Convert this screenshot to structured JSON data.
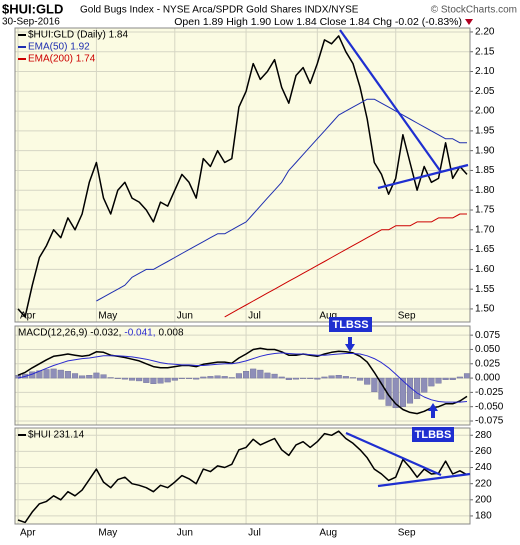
{
  "chart_data": [
    {
      "type": "line",
      "title": "$HUI:GLD",
      "subtitle": "Gold Bugs Index - NYSE Arca/SPDR Gold Shares INDX/NYSE",
      "credit": "© StockCharts.com",
      "date": "30-Sep-2016",
      "quote": "Open 1.89 High 1.90 Low 1.84 Close 1.84 Chg -0.02 (-0.83%)",
      "categories": [
        "Apr",
        null,
        null,
        null,
        null,
        null,
        null,
        null,
        null,
        null,
        null,
        "May",
        null,
        null,
        null,
        null,
        null,
        null,
        null,
        null,
        null,
        null,
        "Jun",
        null,
        null,
        null,
        null,
        null,
        null,
        null,
        null,
        null,
        "Jul",
        null,
        null,
        null,
        null,
        null,
        null,
        null,
        null,
        null,
        "Aug",
        null,
        null,
        null,
        null,
        null,
        null,
        null,
        null,
        null,
        null,
        "Sep",
        null,
        null,
        null,
        null,
        null,
        null,
        null,
        null,
        null,
        null
      ],
      "ylim": [
        1.467,
        2.21
      ],
      "yticks": [
        {
          "value": 1.5,
          "label": "1.50"
        },
        {
          "value": 1.55,
          "label": "1.55"
        },
        {
          "value": 1.6,
          "label": "1.60"
        },
        {
          "value": 1.65,
          "label": "1.65"
        },
        {
          "value": 1.7,
          "label": "1.70"
        },
        {
          "value": 1.75,
          "label": "1.75"
        },
        {
          "value": 1.8,
          "label": "1.80"
        },
        {
          "value": 1.85,
          "label": "1.85"
        },
        {
          "value": 1.9,
          "label": "1.90"
        },
        {
          "value": 1.95,
          "label": "1.95"
        },
        {
          "value": 2.0,
          "label": "2.00"
        },
        {
          "value": 2.05,
          "label": "2.05"
        },
        {
          "value": 2.1,
          "label": "2.10"
        },
        {
          "value": 2.15,
          "label": "2.15"
        },
        {
          "value": 2.2,
          "label": "2.20"
        }
      ],
      "grid": true,
      "series": [
        {
          "name": "$HUI:GLD (Daily) 1.84",
          "color": "#000000",
          "type": "line",
          "values": [
            1.5,
            1.48,
            1.56,
            1.63,
            1.66,
            1.7,
            1.68,
            1.73,
            1.7,
            1.74,
            1.82,
            1.87,
            1.78,
            1.74,
            1.8,
            1.82,
            1.78,
            1.77,
            1.75,
            1.72,
            1.77,
            1.76,
            1.8,
            1.84,
            1.82,
            1.78,
            1.88,
            1.86,
            1.9,
            1.87,
            1.88,
            2.01,
            2.05,
            2.12,
            2.08,
            2.1,
            2.13,
            2.06,
            2.02,
            2.09,
            2.11,
            2.07,
            2.12,
            2.18,
            2.17,
            2.19,
            2.15,
            2.12,
            2.06,
            1.98,
            1.87,
            1.84,
            1.79,
            1.83,
            1.94,
            1.87,
            1.8,
            1.86,
            1.82,
            1.83,
            1.92,
            1.83,
            1.86,
            1.84
          ]
        },
        {
          "name": "EMA(50) 1.92",
          "color": "#1f2fb0",
          "type": "line",
          "values": [
            null,
            null,
            null,
            null,
            null,
            null,
            null,
            null,
            null,
            null,
            null,
            1.52,
            1.53,
            1.54,
            1.55,
            1.56,
            1.58,
            1.59,
            1.6,
            1.6,
            1.61,
            1.62,
            1.63,
            1.64,
            1.65,
            1.66,
            1.67,
            1.68,
            1.69,
            1.69,
            1.7,
            1.71,
            1.72,
            1.74,
            1.76,
            1.78,
            1.8,
            1.82,
            1.85,
            1.87,
            1.89,
            1.91,
            1.93,
            1.95,
            1.97,
            1.99,
            2.0,
            2.01,
            2.02,
            2.03,
            2.03,
            2.02,
            2.01,
            2.0,
            1.99,
            1.98,
            1.97,
            1.96,
            1.95,
            1.94,
            1.93,
            1.93,
            1.92,
            1.92
          ]
        },
        {
          "name": "EMA(200) 1.74",
          "color": "#cc0000",
          "type": "line",
          "values": [
            null,
            null,
            null,
            null,
            null,
            null,
            null,
            null,
            null,
            null,
            null,
            null,
            null,
            null,
            null,
            null,
            null,
            null,
            null,
            null,
            null,
            null,
            null,
            null,
            null,
            null,
            null,
            null,
            null,
            1.48,
            1.49,
            1.5,
            1.51,
            1.52,
            1.53,
            1.54,
            1.55,
            1.56,
            1.57,
            1.58,
            1.59,
            1.6,
            1.61,
            1.62,
            1.63,
            1.64,
            1.65,
            1.66,
            1.67,
            1.68,
            1.69,
            1.7,
            1.7,
            1.71,
            1.71,
            1.71,
            1.72,
            1.72,
            1.72,
            1.73,
            1.73,
            1.73,
            1.74,
            1.74
          ]
        }
      ]
    },
    {
      "type": "line",
      "annotation": "TLBSS",
      "ylim": [
        -0.082,
        0.091
      ],
      "yticks": [
        {
          "value": 0.075,
          "label": "0.075"
        },
        {
          "value": 0.05,
          "label": "0.050"
        },
        {
          "value": 0.025,
          "label": "0.025"
        },
        {
          "value": 0,
          "label": "0.000"
        },
        {
          "value": -0.025,
          "label": "-0.025"
        },
        {
          "value": -0.05,
          "label": "-0.050"
        },
        {
          "value": -0.075,
          "label": "-0.075"
        }
      ],
      "grid": true,
      "series": [
        {
          "name": "MACD(12,26,9) -0.032,",
          "color": "#000000",
          "type": "line",
          "values": [
            0.005,
            0.01,
            0.018,
            0.025,
            0.032,
            0.038,
            0.04,
            0.042,
            0.04,
            0.038,
            0.04,
            0.046,
            0.045,
            0.04,
            0.038,
            0.036,
            0.033,
            0.03,
            0.025,
            0.02,
            0.018,
            0.018,
            0.02,
            0.022,
            0.022,
            0.02,
            0.024,
            0.026,
            0.028,
            0.028,
            0.026,
            0.035,
            0.042,
            0.05,
            0.052,
            0.05,
            0.05,
            0.046,
            0.04,
            0.04,
            0.042,
            0.04,
            0.038,
            0.042,
            0.045,
            0.047,
            0.046,
            0.044,
            0.038,
            0.028,
            0.01,
            -0.01,
            -0.03,
            -0.045,
            -0.055,
            -0.06,
            -0.062,
            -0.058,
            -0.052,
            -0.05,
            -0.045,
            -0.045,
            -0.04,
            -0.032
          ]
        },
        {
          "name": "-0.041,",
          "color": "#2b2bd0",
          "type": "line",
          "values": [
            0.0,
            0.003,
            0.007,
            0.012,
            0.017,
            0.022,
            0.026,
            0.03,
            0.032,
            0.034,
            0.035,
            0.037,
            0.039,
            0.039,
            0.039,
            0.038,
            0.037,
            0.035,
            0.033,
            0.03,
            0.027,
            0.025,
            0.024,
            0.023,
            0.023,
            0.022,
            0.022,
            0.023,
            0.024,
            0.025,
            0.025,
            0.027,
            0.03,
            0.034,
            0.038,
            0.041,
            0.043,
            0.044,
            0.043,
            0.042,
            0.042,
            0.041,
            0.04,
            0.04,
            0.041,
            0.042,
            0.043,
            0.043,
            0.042,
            0.039,
            0.034,
            0.027,
            0.018,
            0.007,
            -0.005,
            -0.016,
            -0.026,
            -0.033,
            -0.038,
            -0.041,
            -0.042,
            -0.042,
            -0.042,
            -0.041
          ]
        },
        {
          "name": "0.008",
          "color": "#8e8eb8",
          "type": "bar",
          "values": [
            0.005,
            0.007,
            0.011,
            0.013,
            0.015,
            0.016,
            0.014,
            0.012,
            0.008,
            0.004,
            0.005,
            0.009,
            0.006,
            0.001,
            -0.001,
            -0.002,
            -0.004,
            -0.005,
            -0.008,
            -0.01,
            -0.009,
            -0.007,
            -0.004,
            -0.001,
            -0.001,
            -0.002,
            0.002,
            0.003,
            0.004,
            0.003,
            0.001,
            0.008,
            0.012,
            0.016,
            0.014,
            0.009,
            0.007,
            0.002,
            -0.003,
            -0.002,
            0.0,
            -0.001,
            -0.002,
            0.002,
            0.004,
            0.005,
            0.003,
            0.001,
            -0.004,
            -0.011,
            -0.024,
            -0.037,
            -0.048,
            -0.052,
            -0.05,
            -0.044,
            -0.036,
            -0.025,
            -0.014,
            -0.009,
            -0.003,
            -0.003,
            0.002,
            0.008
          ]
        }
      ]
    },
    {
      "type": "line",
      "annotation": "TLBBS",
      "categories": [
        "Apr",
        null,
        null,
        null,
        null,
        null,
        null,
        null,
        null,
        null,
        null,
        "May",
        null,
        null,
        null,
        null,
        null,
        null,
        null,
        null,
        null,
        null,
        "Jun",
        null,
        null,
        null,
        null,
        null,
        null,
        null,
        null,
        null,
        "Jul",
        null,
        null,
        null,
        null,
        null,
        null,
        null,
        null,
        null,
        "Aug",
        null,
        null,
        null,
        null,
        null,
        null,
        null,
        null,
        null,
        null,
        "Sep",
        null,
        null,
        null,
        null,
        null,
        null,
        null,
        null,
        null,
        null
      ],
      "ylim": [
        170,
        289
      ],
      "yticks": [
        180,
        200,
        220,
        240,
        260,
        280
      ],
      "grid": true,
      "series": [
        {
          "name": "$HUI 231.14",
          "color": "#000000",
          "type": "line",
          "values": [
            175,
            172,
            185,
            195,
            198,
            205,
            200,
            210,
            205,
            212,
            225,
            238,
            222,
            215,
            225,
            228,
            220,
            218,
            215,
            210,
            218,
            215,
            222,
            230,
            226,
            220,
            238,
            235,
            242,
            240,
            244,
            262,
            265,
            275,
            268,
            272,
            276,
            262,
            255,
            268,
            272,
            265,
            272,
            282,
            280,
            285,
            276,
            270,
            262,
            252,
            238,
            232,
            224,
            228,
            250,
            240,
            228,
            238,
            232,
            233,
            248,
            232,
            236,
            231
          ]
        }
      ]
    }
  ]
}
